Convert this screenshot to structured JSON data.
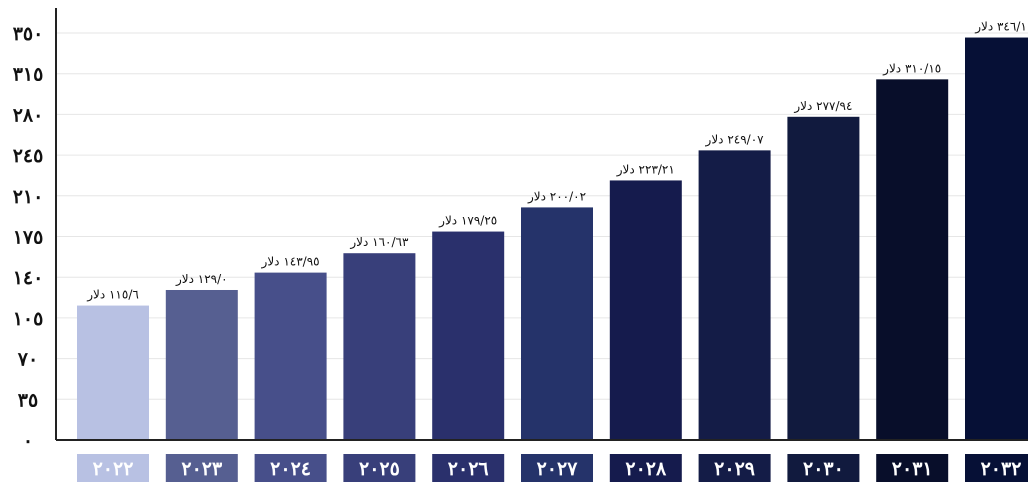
{
  "chart_data": {
    "type": "bar",
    "title": "",
    "xlabel": "",
    "ylabel": "",
    "ylim": [
      0,
      350
    ],
    "grid": true,
    "legend": "none",
    "y_ticks": [
      {
        "value": 0,
        "label": "٠"
      },
      {
        "value": 35,
        "label": "٣٥"
      },
      {
        "value": 70,
        "label": "٧٠"
      },
      {
        "value": 105,
        "label": "١٠٥"
      },
      {
        "value": 140,
        "label": "١٤٠"
      },
      {
        "value": 175,
        "label": "١٧٥"
      },
      {
        "value": 210,
        "label": "٢١٠"
      },
      {
        "value": 245,
        "label": "٢٤٥"
      },
      {
        "value": 280,
        "label": "٢٨٠"
      },
      {
        "value": 315,
        "label": "٣١٥"
      },
      {
        "value": 350,
        "label": "٣٥٠"
      }
    ],
    "categories": [
      "٢٠٢٢",
      "٢٠٢٣",
      "٢٠٢٤",
      "٢٠٢٥",
      "٢٠٢٦",
      "٢٠٢٧",
      "٢٠٢٨",
      "٢٠٢٩",
      "٢٠٣٠",
      "٢٠٣١",
      "٢٠٣٢"
    ],
    "values": [
      115.6,
      129.0,
      143.95,
      160.63,
      179.25,
      200.02,
      223.21,
      249.07,
      277.94,
      310.15,
      346.1
    ],
    "value_labels": [
      "١١٥/٦ دلار",
      "١٢٩/٠ دلار",
      "١٤٣/٩٥ دلار",
      "١٦٠/٦٣ دلار",
      "١٧٩/٢٥ دلار",
      "٢٠٠/٠٢ دلار",
      "٢٢٣/٢١ دلار",
      "٢٤٩/٠٧ دلار",
      "٢٧٧/٩٤ دلار",
      "٣١٠/١٥ دلار",
      "٣٤٦/١ دلار"
    ],
    "colors": [
      "#b8c1e3",
      "#565f91",
      "#474f8a",
      "#383f7a",
      "#2a306c",
      "#25336a",
      "#151b4d",
      "#141c47",
      "#111a3e",
      "#080e2a",
      "#061036"
    ]
  }
}
